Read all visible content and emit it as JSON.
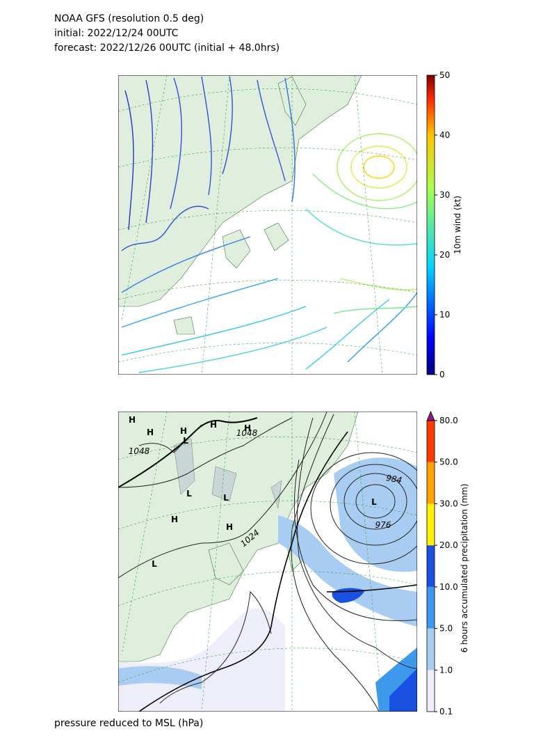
{
  "header": {
    "lines": [
      "NOAA GFS (resolution 0.5 deg)",
      "initial: 2022/12/24 00UTC",
      "forecast: 2022/12/26 00UTC (initial + 48.0hrs)"
    ]
  },
  "panels": [
    {
      "colorbar": {
        "label": "10m wind (kt)",
        "lim": [
          0,
          50
        ],
        "ticks": [
          0,
          10,
          20,
          30,
          40,
          50
        ]
      }
    },
    {
      "colorbar": {
        "label": "6 hours accumulated precipitation (mm)",
        "ticks": [
          {
            "value": 0.1,
            "label": "0.1"
          },
          {
            "value": 1,
            "label": "1.0"
          },
          {
            "value": 5,
            "label": "5.0"
          },
          {
            "value": 10,
            "label": "10.0"
          },
          {
            "value": 20,
            "label": "20.0"
          },
          {
            "value": 30,
            "label": "30.0"
          },
          {
            "value": 50,
            "label": "50.0"
          },
          {
            "value": 80,
            "label": "80.0"
          }
        ],
        "colors": [
          "#eeeefa",
          "#a9cdf2",
          "#3d98ee",
          "#1a50e0",
          "#fff100",
          "#ffa200",
          "#ff3a00"
        ],
        "extend_color": "#8a1a8a"
      },
      "systems": [
        "H",
        "H",
        "H",
        "H",
        "H",
        "L",
        "L",
        "L",
        "H",
        "H",
        "L",
        "L"
      ],
      "isobar_labels": [
        "1048",
        "1048",
        "1024",
        "984",
        "976"
      ],
      "footer": "pressure reduced to MSL (hPa)"
    }
  ]
}
